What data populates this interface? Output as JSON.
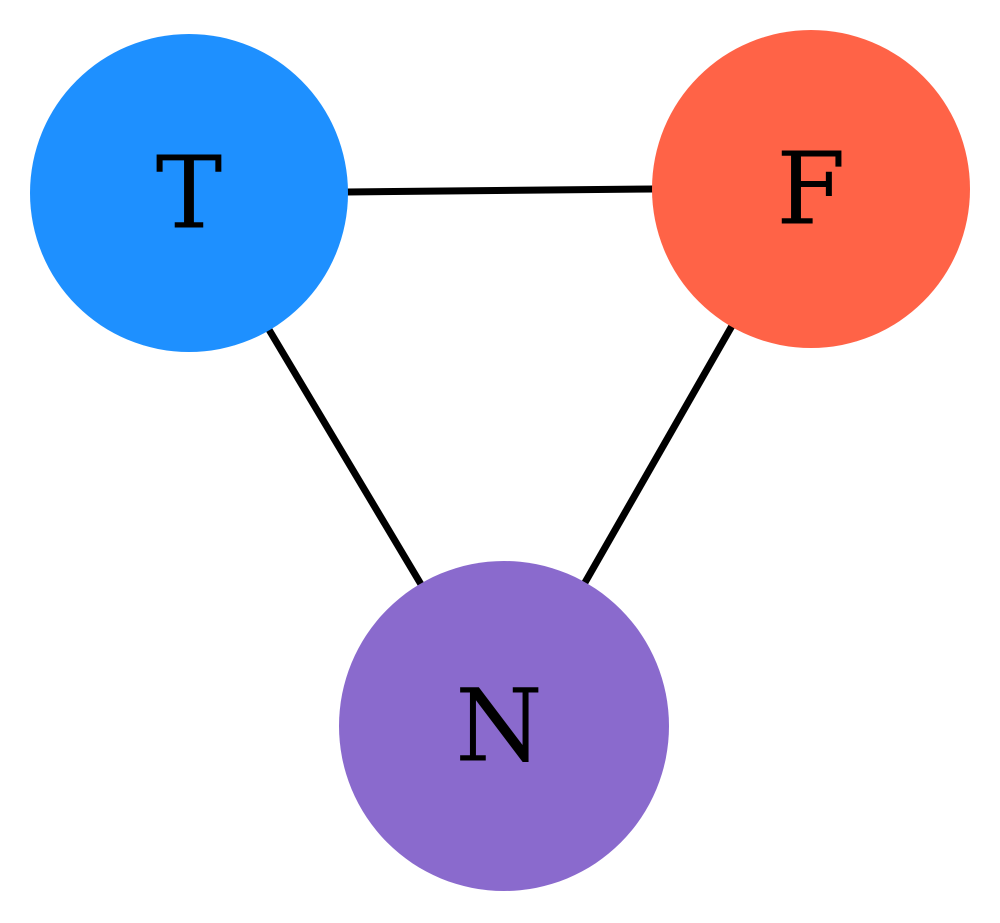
{
  "diagram": {
    "type": "undirected-graph",
    "nodes": [
      {
        "id": "T",
        "label": "T",
        "color": "#1E90FF"
      },
      {
        "id": "F",
        "label": "F",
        "color": "#FF6347"
      },
      {
        "id": "N",
        "label": "N",
        "color": "#8A6ACD"
      }
    ],
    "edges": [
      {
        "from": "T",
        "to": "F"
      },
      {
        "from": "T",
        "to": "N"
      },
      {
        "from": "F",
        "to": "N"
      }
    ],
    "edge_color": "#000000"
  }
}
